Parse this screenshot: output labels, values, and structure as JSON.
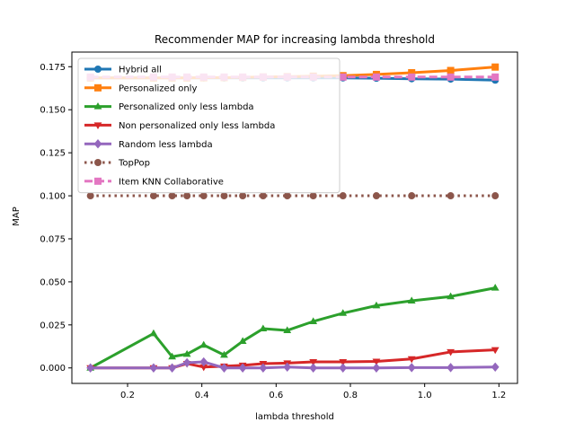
{
  "chart_data": {
    "type": "line",
    "title": "Recommender MAP for increasing lambda threshold",
    "xlabel": "lambda threshold",
    "ylabel": "MAP",
    "xlim": [
      0.05,
      1.25
    ],
    "ylim": [
      -0.009,
      0.1835
    ],
    "xticks": [
      0.2,
      0.4,
      0.6,
      0.8,
      1.0,
      1.2
    ],
    "xtick_labels": [
      "0.2",
      "0.4",
      "0.6",
      "0.8",
      "1.0",
      "1.2"
    ],
    "yticks": [
      0.0,
      0.025,
      0.05,
      0.075,
      0.1,
      0.125,
      0.15,
      0.175
    ],
    "ytick_labels": [
      "0.000",
      "0.025",
      "0.050",
      "0.075",
      "0.100",
      "0.125",
      "0.150",
      "0.175"
    ],
    "grid": false,
    "legend_position": "top-left",
    "x": [
      0.1,
      0.27,
      0.32,
      0.36,
      0.405,
      0.46,
      0.51,
      0.565,
      0.63,
      0.7,
      0.78,
      0.87,
      0.965,
      1.07,
      1.19
    ],
    "series": [
      {
        "name": "Hybrid all",
        "color": "#1f77b4",
        "marker": "circle",
        "linestyle": "solid",
        "values": [
          0.1685,
          0.1685,
          0.1685,
          0.1685,
          0.1685,
          0.1685,
          0.1685,
          0.1685,
          0.1685,
          0.1685,
          0.1685,
          0.1683,
          0.168,
          0.1678,
          0.1672
        ]
      },
      {
        "name": "Personalized only",
        "color": "#ff7f0e",
        "marker": "square",
        "linestyle": "solid",
        "values": [
          0.1685,
          0.1685,
          0.1685,
          0.1685,
          0.1686,
          0.1687,
          0.1688,
          0.169,
          0.1692,
          0.1695,
          0.1698,
          0.1705,
          0.1715,
          0.1728,
          0.1748
        ]
      },
      {
        "name": "Personalized only less lambda",
        "color": "#2ca02c",
        "marker": "triangle-up",
        "linestyle": "solid",
        "values": [
          0.0,
          0.02,
          0.0065,
          0.008,
          0.0133,
          0.0075,
          0.0155,
          0.0228,
          0.0218,
          0.027,
          0.0318,
          0.0362,
          0.039,
          0.0415,
          0.0465
        ]
      },
      {
        "name": "Non personalized only less lambda",
        "color": "#d62728",
        "marker": "triangle-down",
        "linestyle": "solid",
        "values": [
          0.0,
          0.0,
          0.0,
          0.0025,
          0.0005,
          0.001,
          0.0015,
          0.0025,
          0.0028,
          0.0035,
          0.0035,
          0.0038,
          0.0052,
          0.0093,
          0.0105
        ]
      },
      {
        "name": "Random less lambda",
        "color": "#9467bd",
        "marker": "diamond",
        "linestyle": "solid",
        "values": [
          0.0,
          0.0,
          0.0,
          0.003,
          0.0035,
          0.0,
          0.0,
          0.0,
          0.0005,
          0.0,
          0.0,
          0.0,
          0.0002,
          0.0002,
          0.0005
        ]
      },
      {
        "name": "TopPop",
        "color": "#8c564b",
        "marker": "circle",
        "linestyle": "dotted",
        "values": [
          0.1,
          0.1,
          0.1,
          0.1,
          0.1,
          0.1,
          0.1,
          0.1,
          0.1,
          0.1,
          0.1,
          0.1,
          0.1,
          0.1,
          0.1
        ]
      },
      {
        "name": "Item KNN Collaborative",
        "color": "#e377c2",
        "marker": "square",
        "linestyle": "dashed",
        "values": [
          0.169,
          0.169,
          0.169,
          0.169,
          0.169,
          0.169,
          0.169,
          0.169,
          0.169,
          0.169,
          0.169,
          0.169,
          0.169,
          0.169,
          0.169
        ]
      }
    ]
  }
}
